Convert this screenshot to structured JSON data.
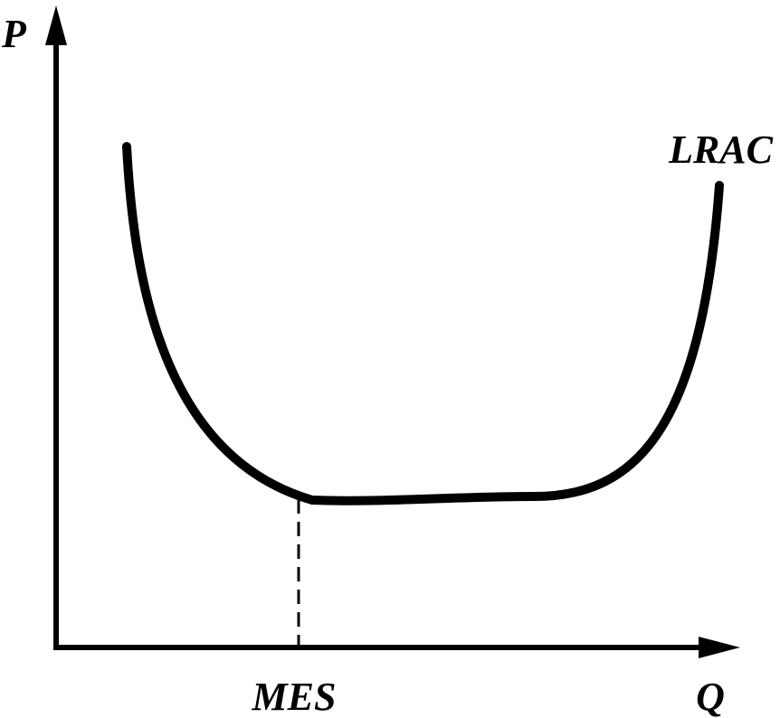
{
  "diagram": {
    "y_axis_label": "P",
    "x_axis_label": "Q",
    "curve_label": "LRAC",
    "marker_label": "MES"
  }
}
